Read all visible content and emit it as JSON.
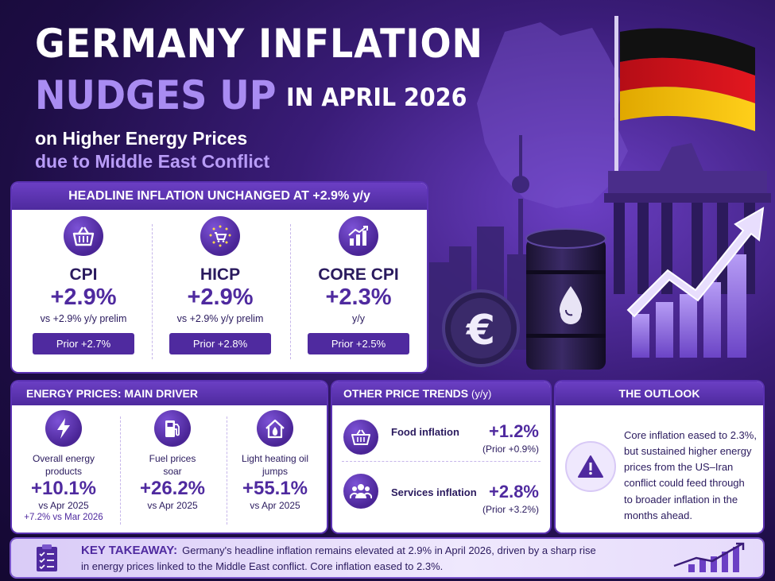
{
  "title": {
    "line1": "GERMANY INFLATION",
    "line2_highlight": "NUDGES UP",
    "line2_rest": "IN APRIL 2026",
    "subtitle1": "on Higher Energy Prices",
    "subtitle2": "due to Middle East Conflict"
  },
  "headline": {
    "header": "HEADLINE INFLATION UNCHANGED AT +2.9% y/y",
    "metrics": [
      {
        "icon": "basket-icon",
        "name": "CPI",
        "value": "+2.9%",
        "note": "vs +2.9% y/y prelim",
        "prior": "Prior +2.7%"
      },
      {
        "icon": "eu-cart-icon",
        "name": "HICP",
        "value": "+2.9%",
        "note": "vs +2.9% y/y prelim",
        "prior": "Prior +2.8%"
      },
      {
        "icon": "bar-chart-up-icon",
        "name": "CORE CPI",
        "value": "+2.3%",
        "note": "y/y",
        "prior": "Prior +2.5%"
      }
    ]
  },
  "energy": {
    "header": "ENERGY PRICES: MAIN DRIVER",
    "items": [
      {
        "icon": "lightning-icon",
        "label_line1": "Overall energy",
        "label_line2": "products",
        "value": "+10.1%",
        "note": "vs Apr 2025",
        "note2": "+7.2% vs Mar 2026"
      },
      {
        "icon": "fuel-pump-icon",
        "label_line1": "Fuel prices",
        "label_line2": "soar",
        "value": "+26.2%",
        "note": "vs Apr 2025"
      },
      {
        "icon": "house-flame-icon",
        "label_line1": "Light heating oil",
        "label_line2": "jumps",
        "value": "+55.1%",
        "note": "vs Apr 2025"
      }
    ]
  },
  "trends": {
    "header": "OTHER PRICE TRENDS",
    "header_unit": "(y/y)",
    "items": [
      {
        "icon": "food-basket-icon",
        "label": "Food inflation",
        "value": "+1.2%",
        "prior": "(Prior +0.9%)"
      },
      {
        "icon": "people-icon",
        "label": "Services inflation",
        "value": "+2.8%",
        "prior": "(Prior +3.2%)"
      }
    ]
  },
  "outlook": {
    "header": "THE OUTLOOK",
    "lines": [
      "Core inflation eased to 2.3%,",
      "but sustained higher energy",
      "prices from the US–Iran",
      "conflict could feed through",
      "to broader inflation in the",
      "months ahead."
    ]
  },
  "takeaway": {
    "head": "KEY TAKEAWAY:",
    "line1": "Germany's headline inflation remains elevated at 2.9% in April 2026, driven by a sharp rise",
    "line2": "in energy prices linked to the Middle East conflict. Core inflation eased to 2.3%."
  },
  "colors": {
    "accent": "#4f2a9f",
    "accent_light": "#a98cf2",
    "background_dark": "#1d0d44",
    "flag_black": "#111111",
    "flag_red": "#d0111b",
    "flag_gold": "#f2c200"
  }
}
